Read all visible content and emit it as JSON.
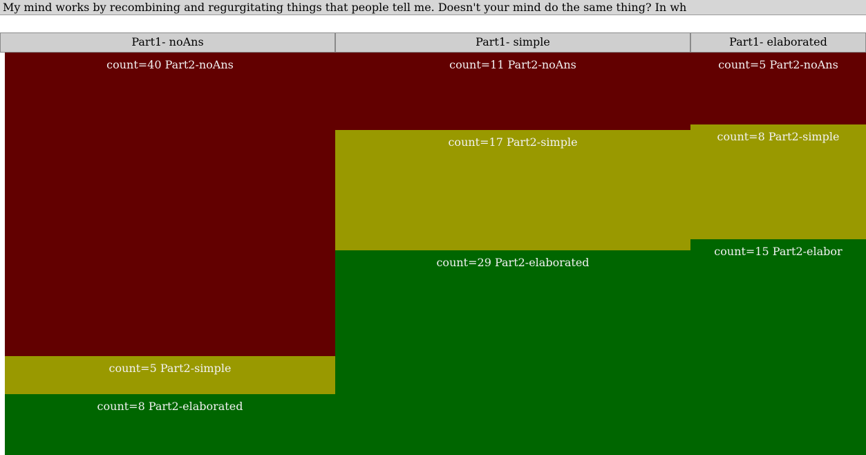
{
  "question_text": "My mind works by recombining and regurgitating things that people tell me. Doesn't your mind do the same thing? In wh",
  "colors": {
    "noAns": "#620000",
    "simple": "#999900",
    "elaborated": "#006600"
  },
  "chart_data": {
    "type": "mosaic",
    "columns": [
      {
        "label": "Part1- noAns",
        "cells": [
          {
            "category": "noAns",
            "label": "count=40  Part2-noAns",
            "count": 40
          },
          {
            "category": "simple",
            "label": "count=5  Part2-simple",
            "count": 5
          },
          {
            "category": "elaborated",
            "label": "count=8  Part2-elaborated",
            "count": 8
          }
        ]
      },
      {
        "label": "Part1- simple",
        "cells": [
          {
            "category": "noAns",
            "label": "count=11  Part2-noAns",
            "count": 11
          },
          {
            "category": "simple",
            "label": "count=17  Part2-simple",
            "count": 17
          },
          {
            "category": "elaborated",
            "label": "count=29  Part2-elaborated",
            "count": 29
          }
        ]
      },
      {
        "label": "Part1- elaborated",
        "cells": [
          {
            "category": "noAns",
            "label": "count=5  Part2-noAns",
            "count": 5
          },
          {
            "category": "simple",
            "label": "count=8  Part2-simple",
            "count": 8
          },
          {
            "category": "elaborated",
            "label": "count=15  Part2-elabor",
            "count": 15
          }
        ]
      }
    ]
  }
}
